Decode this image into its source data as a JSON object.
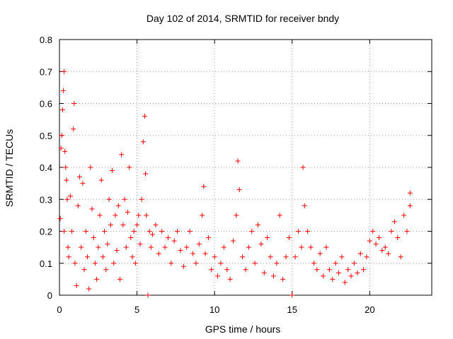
{
  "chart_data": {
    "type": "scatter",
    "title": "Day 102 of 2014, SRMTID for receiver bndy",
    "xlabel": "GPS time / hours",
    "ylabel": "SRMTID / TECUs",
    "xlim": [
      0,
      24
    ],
    "ylim": [
      0,
      0.8
    ],
    "xticks": [
      0,
      5,
      10,
      15,
      20
    ],
    "yticks": [
      0,
      0.1,
      0.2,
      0.3,
      0.4,
      0.5,
      0.6,
      0.7,
      0.8
    ],
    "grid": true,
    "marker": "plus",
    "color": "#ff0000",
    "series": [
      {
        "name": "SRMTID",
        "x": [
          0.05,
          0.1,
          0.15,
          0.2,
          0.25,
          0.3,
          0.3,
          0.35,
          0.4,
          0.45,
          0.5,
          0.55,
          0.6,
          0.7,
          0.8,
          0.9,
          0.95,
          1.0,
          1.1,
          1.2,
          1.3,
          1.4,
          1.5,
          1.6,
          1.7,
          1.8,
          1.9,
          2.0,
          2.1,
          2.2,
          2.3,
          2.4,
          2.5,
          2.6,
          2.7,
          2.8,
          2.9,
          3.0,
          3.1,
          3.2,
          3.3,
          3.4,
          3.5,
          3.6,
          3.7,
          3.8,
          3.9,
          4.0,
          4.1,
          4.2,
          4.3,
          4.4,
          4.5,
          4.6,
          4.7,
          4.8,
          4.9,
          5.0,
          5.1,
          5.2,
          5.3,
          5.4,
          5.5,
          5.55,
          5.6,
          5.7,
          5.8,
          5.9,
          6.0,
          6.2,
          6.4,
          6.6,
          6.8,
          7.0,
          7.2,
          7.4,
          7.6,
          7.8,
          8.0,
          8.2,
          8.4,
          8.6,
          8.8,
          9.0,
          9.2,
          9.3,
          9.4,
          9.6,
          9.8,
          10.0,
          10.2,
          10.4,
          10.6,
          10.8,
          11.0,
          11.2,
          11.4,
          11.5,
          11.6,
          11.8,
          12.0,
          12.2,
          12.4,
          12.6,
          12.8,
          13.0,
          13.2,
          13.4,
          13.6,
          13.8,
          14.0,
          14.2,
          14.4,
          14.6,
          14.8,
          15.0,
          15.2,
          15.4,
          15.6,
          15.7,
          15.8,
          16.0,
          16.2,
          16.4,
          16.6,
          16.8,
          17.0,
          17.2,
          17.4,
          17.6,
          17.8,
          18.0,
          18.2,
          18.4,
          18.6,
          18.8,
          19.0,
          19.2,
          19.4,
          19.6,
          19.8,
          20.0,
          20.2,
          20.4,
          20.6,
          20.8,
          21.0,
          21.2,
          21.4,
          21.6,
          21.8,
          22.0,
          22.2,
          22.4,
          22.6,
          22.6
        ],
        "y": [
          0.24,
          0.46,
          0.5,
          0.58,
          0.64,
          0.7,
          0.2,
          0.45,
          0.4,
          0.36,
          0.3,
          0.15,
          0.12,
          0.31,
          0.2,
          0.52,
          0.6,
          0.1,
          0.03,
          0.28,
          0.37,
          0.15,
          0.35,
          0.08,
          0.2,
          0.12,
          0.02,
          0.4,
          0.27,
          0.18,
          0.1,
          0.05,
          0.15,
          0.25,
          0.36,
          0.12,
          0.2,
          0.08,
          0.16,
          0.3,
          0.22,
          0.39,
          0.1,
          0.25,
          0.14,
          0.28,
          0.05,
          0.44,
          0.22,
          0.3,
          0.15,
          0.26,
          0.4,
          0.18,
          0.12,
          0.2,
          0.1,
          0.22,
          0.25,
          0.16,
          0.3,
          0.48,
          0.56,
          0.38,
          0.25,
          0.0,
          0.2,
          0.15,
          0.19,
          0.22,
          0.13,
          0.2,
          0.15,
          0.18,
          0.1,
          0.17,
          0.2,
          0.14,
          0.09,
          0.15,
          0.2,
          0.13,
          0.1,
          0.16,
          0.25,
          0.34,
          0.13,
          0.18,
          0.08,
          0.12,
          0.06,
          0.1,
          0.15,
          0.08,
          0.05,
          0.17,
          0.25,
          0.42,
          0.33,
          0.12,
          0.08,
          0.15,
          0.2,
          0.1,
          0.22,
          0.16,
          0.07,
          0.18,
          0.12,
          0.06,
          0.1,
          0.25,
          0.05,
          0.12,
          0.18,
          0.0,
          0.12,
          0.2,
          0.15,
          0.4,
          0.28,
          0.2,
          0.15,
          0.1,
          0.08,
          0.13,
          0.06,
          0.15,
          0.08,
          0.05,
          0.1,
          0.07,
          0.12,
          0.04,
          0.08,
          0.06,
          0.1,
          0.07,
          0.13,
          0.08,
          0.12,
          0.17,
          0.2,
          0.16,
          0.18,
          0.14,
          0.15,
          0.13,
          0.2,
          0.23,
          0.18,
          0.12,
          0.25,
          0.2,
          0.28,
          0.32
        ]
      }
    ]
  }
}
